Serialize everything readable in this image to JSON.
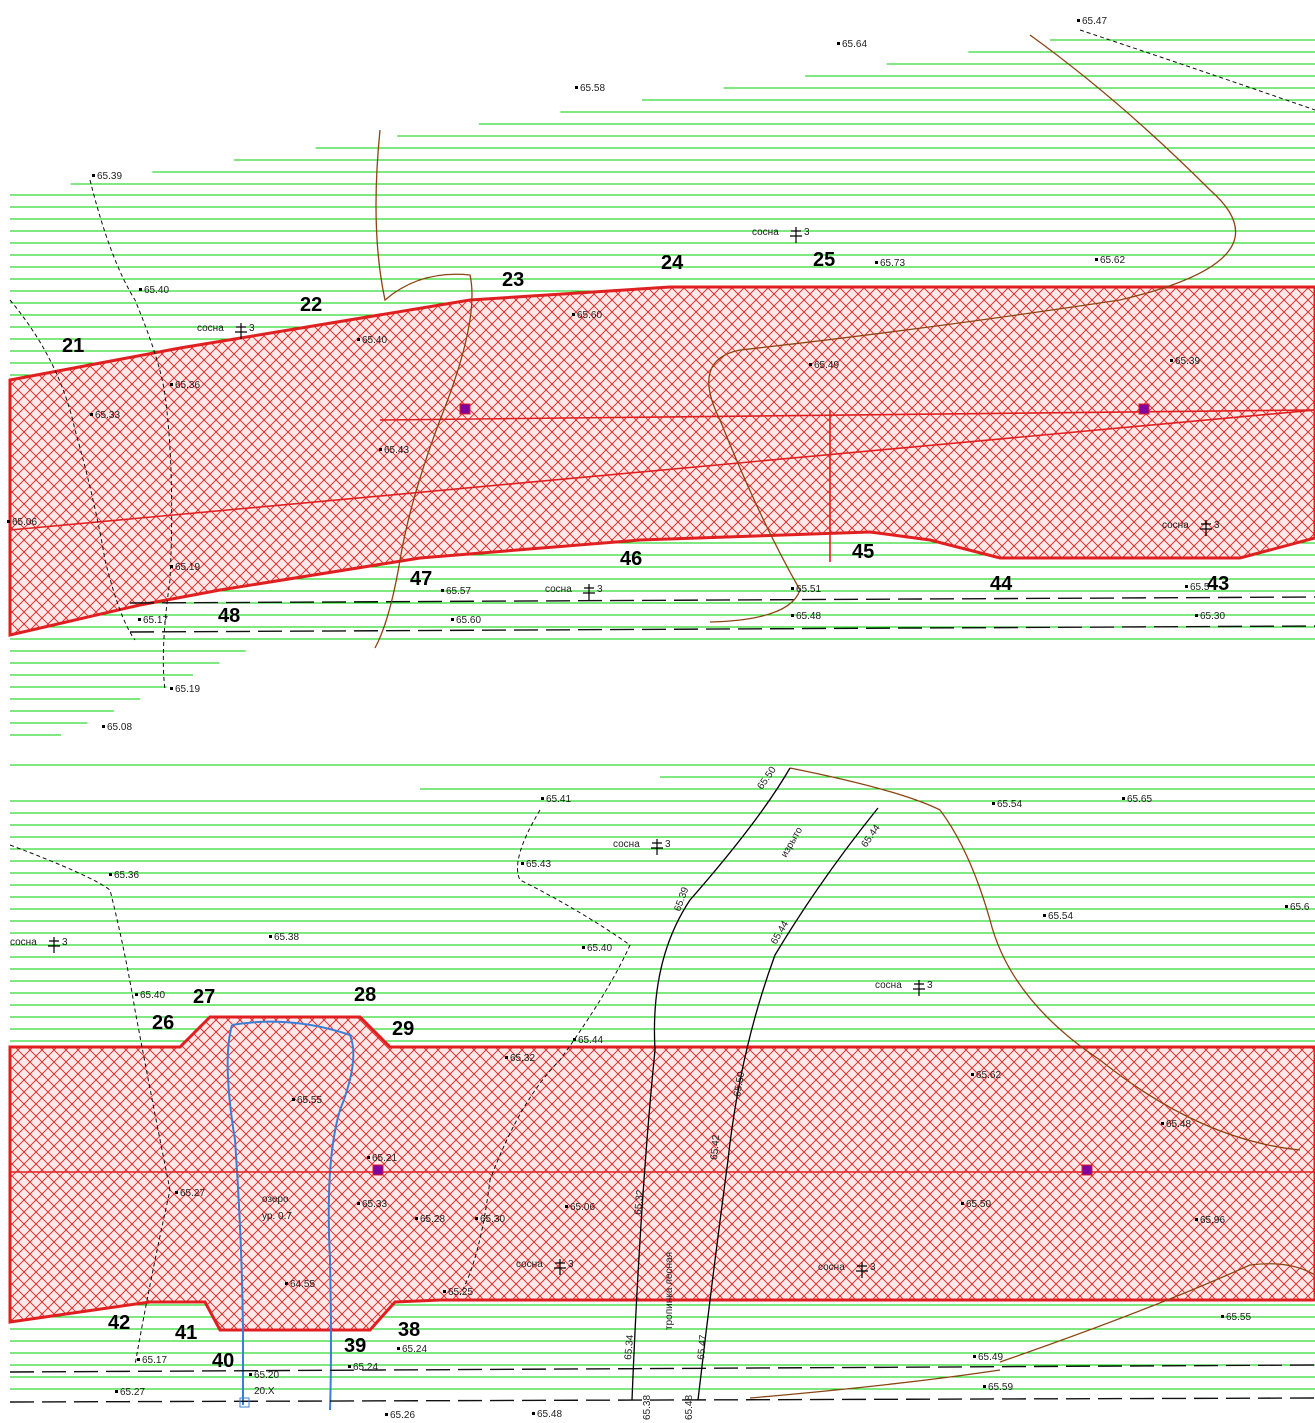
{
  "colors": {
    "grass_lines": "#00d000",
    "boundary": "#e02020",
    "hatch": "#e02020",
    "contour": "#8b4513",
    "water_outline": "#3a7fd5",
    "points": "#000000",
    "well_marker": "#8000a0"
  },
  "parcel_numbers": [
    {
      "id": "21",
      "label": "21"
    },
    {
      "id": "22",
      "label": "22"
    },
    {
      "id": "23",
      "label": "23"
    },
    {
      "id": "24",
      "label": "24"
    },
    {
      "id": "25",
      "label": "25"
    },
    {
      "id": "43",
      "label": "43"
    },
    {
      "id": "44",
      "label": "44"
    },
    {
      "id": "45",
      "label": "45"
    },
    {
      "id": "46",
      "label": "46"
    },
    {
      "id": "47",
      "label": "47"
    },
    {
      "id": "48",
      "label": "48"
    },
    {
      "id": "26",
      "label": "26"
    },
    {
      "id": "27",
      "label": "27"
    },
    {
      "id": "28",
      "label": "28"
    },
    {
      "id": "29",
      "label": "29"
    },
    {
      "id": "38",
      "label": "38"
    },
    {
      "id": "39",
      "label": "39"
    },
    {
      "id": "40",
      "label": "40"
    },
    {
      "id": "41",
      "label": "41"
    },
    {
      "id": "42",
      "label": "42"
    }
  ],
  "elevations": [
    {
      "id": "e1",
      "label": "65.47"
    },
    {
      "id": "e2",
      "label": "65.64"
    },
    {
      "id": "e3",
      "label": "65.58"
    },
    {
      "id": "e4",
      "label": "65.39"
    },
    {
      "id": "e5",
      "label": "65.40"
    },
    {
      "id": "e6",
      "label": "65.73"
    },
    {
      "id": "e7",
      "label": "65.62"
    },
    {
      "id": "e8",
      "label": "65.60"
    },
    {
      "id": "e9",
      "label": "65.40"
    },
    {
      "id": "e10",
      "label": "65.49"
    },
    {
      "id": "e11",
      "label": "65.39"
    },
    {
      "id": "e12",
      "label": "65.36"
    },
    {
      "id": "e13",
      "label": "65.33"
    },
    {
      "id": "e14",
      "label": "65.43"
    },
    {
      "id": "e15",
      "label": "65.06"
    },
    {
      "id": "e16",
      "label": "65.19"
    },
    {
      "id": "e17",
      "label": "65.57"
    },
    {
      "id": "e18",
      "label": "65.51"
    },
    {
      "id": "e19",
      "label": "65.17"
    },
    {
      "id": "e20",
      "label": "65.60"
    },
    {
      "id": "e21",
      "label": "65.48"
    },
    {
      "id": "e22",
      "label": "65.30"
    },
    {
      "id": "e23",
      "label": "65.19"
    },
    {
      "id": "e24",
      "label": "65.08"
    },
    {
      "id": "e25",
      "label": "65.41"
    },
    {
      "id": "e26",
      "label": "65.54"
    },
    {
      "id": "e27",
      "label": "65.65"
    },
    {
      "id": "e28",
      "label": "65.36"
    },
    {
      "id": "e29",
      "label": "65.43"
    },
    {
      "id": "e30",
      "label": "65.54"
    },
    {
      "id": "e31",
      "label": "65.38"
    },
    {
      "id": "e32",
      "label": "65.40"
    },
    {
      "id": "e33",
      "label": "65.40"
    },
    {
      "id": "e34",
      "label": "65.44"
    },
    {
      "id": "e35",
      "label": "65.32"
    },
    {
      "id": "e36",
      "label": "65.62"
    },
    {
      "id": "e37",
      "label": "65.55"
    },
    {
      "id": "e38",
      "label": "65.48"
    },
    {
      "id": "e39",
      "label": "65.21"
    },
    {
      "id": "e40",
      "label": "65.27"
    },
    {
      "id": "e41",
      "label": "65.30"
    },
    {
      "id": "e42",
      "label": "65.28"
    },
    {
      "id": "e43",
      "label": "65.33"
    },
    {
      "id": "e44",
      "label": "65.06"
    },
    {
      "id": "e45",
      "label": "65.50"
    },
    {
      "id": "e46",
      "label": "65.96"
    },
    {
      "id": "e47",
      "label": "65.25"
    },
    {
      "id": "e48",
      "label": "64.55"
    },
    {
      "id": "e49",
      "label": "65.55"
    },
    {
      "id": "e50",
      "label": "65.17"
    },
    {
      "id": "e51",
      "label": "65.20"
    },
    {
      "id": "e52",
      "label": "65.24"
    },
    {
      "id": "e53",
      "label": "65.24"
    },
    {
      "id": "e54",
      "label": "65.49"
    },
    {
      "id": "e55",
      "label": "65.59"
    },
    {
      "id": "e56",
      "label": "65.27"
    },
    {
      "id": "e57",
      "label": "65.26"
    },
    {
      "id": "e58",
      "label": "65.48"
    },
    {
      "id": "e59",
      "label": "65.6"
    },
    {
      "id": "e60",
      "label": "65.5"
    }
  ],
  "contour_labels": [
    {
      "id": "c1",
      "label": "65.50"
    },
    {
      "id": "c2",
      "label": "65.44"
    },
    {
      "id": "c3",
      "label": "65.39"
    },
    {
      "id": "c4",
      "label": "65.44"
    },
    {
      "id": "c5",
      "label": "65.50"
    },
    {
      "id": "c6",
      "label": "65.42"
    },
    {
      "id": "c7",
      "label": "65.32"
    },
    {
      "id": "c8",
      "label": "65.34"
    },
    {
      "id": "c9",
      "label": "65.47"
    },
    {
      "id": "c10",
      "label": "65.38"
    },
    {
      "id": "c11",
      "label": "65.48"
    }
  ],
  "tree_labels": {
    "pine": "сосна",
    "count": "3"
  },
  "text_notes": {
    "izryto": "изрыто",
    "path": "тропинка лесная",
    "water_body": "озеро",
    "water_level": "ур. 0.7",
    "water_depth": "20.Х"
  }
}
